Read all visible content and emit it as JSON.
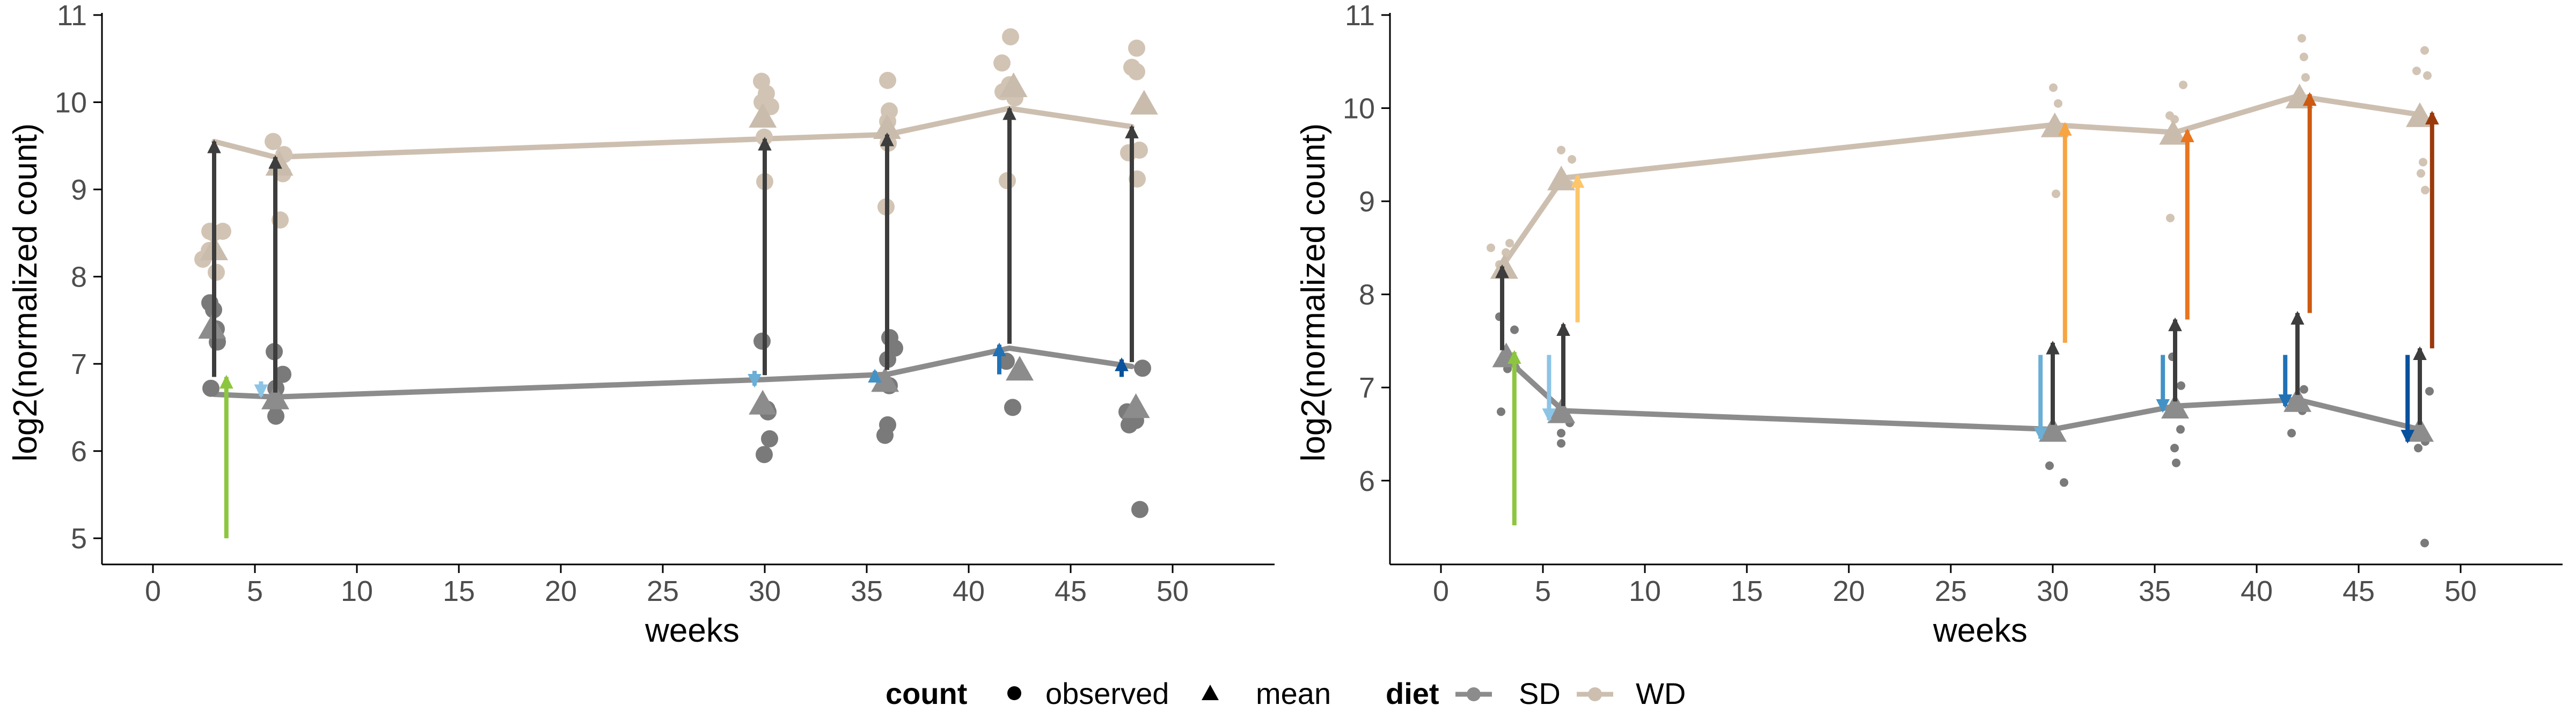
{
  "legend": {
    "count_title": "count",
    "count_items": [
      {
        "label": "observed",
        "shape": "circle"
      },
      {
        "label": "mean",
        "shape": "triangle"
      }
    ],
    "diet_title": "diet",
    "diet_items": [
      {
        "label": "SD",
        "color": "#8c8c8c"
      },
      {
        "label": "WD",
        "color": "#cdbfb0"
      }
    ]
  },
  "colors": {
    "SD": "#8c8c8c",
    "WD": "#cdbfb0",
    "observed_SD": "#7a7a7a",
    "observed_WD": "#d2c4b4",
    "mean_SD": "#8c8c8c",
    "mean_WD": "#c9bcac",
    "dark_arrow": "#3d3d3d",
    "axis": "#000000"
  },
  "chart_data": [
    {
      "type": "scatter",
      "panel": "left",
      "xlabel": "weeks",
      "ylabel": "log2(normalized count)",
      "xlim": [
        -2.5,
        55
      ],
      "ylim": [
        4.7,
        11
      ],
      "xticks": [
        0,
        5,
        10,
        15,
        20,
        25,
        30,
        35,
        40,
        45,
        50
      ],
      "yticks": [
        5,
        6,
        7,
        8,
        9,
        10,
        11
      ],
      "grid": false,
      "series": [
        {
          "name": "SD",
          "line": [
            [
              3,
              6.65
            ],
            [
              6,
              6.62
            ],
            [
              30,
              6.82
            ],
            [
              36,
              6.88
            ],
            [
              42,
              7.18
            ],
            [
              48,
              6.97
            ]
          ]
        },
        {
          "name": "WD",
          "line": [
            [
              3,
              9.55
            ],
            [
              6,
              9.37
            ],
            [
              30,
              9.58
            ],
            [
              36,
              9.63
            ],
            [
              42,
              9.93
            ],
            [
              48,
              9.72
            ]
          ]
        }
      ],
      "observed": {
        "SD": [
          [
            3.0,
            6.72
          ],
          [
            3.2,
            7.25
          ],
          [
            3.0,
            7.4
          ],
          [
            3.1,
            7.62
          ],
          [
            2.8,
            7.7
          ],
          [
            5.9,
            6.4
          ],
          [
            6.1,
            6.55
          ],
          [
            6.0,
            6.72
          ],
          [
            6.2,
            6.88
          ],
          [
            6.0,
            7.14
          ],
          [
            29.9,
            5.96
          ],
          [
            30.4,
            6.14
          ],
          [
            30.2,
            6.45
          ],
          [
            30.0,
            6.48
          ],
          [
            30.0,
            7.26
          ],
          [
            35.9,
            6.18
          ],
          [
            35.9,
            6.3
          ],
          [
            36.2,
            6.75
          ],
          [
            36.0,
            7.05
          ],
          [
            36.2,
            7.18
          ],
          [
            36.2,
            7.3
          ],
          [
            42.1,
            6.5
          ],
          [
            42.0,
            7.03
          ],
          [
            47.9,
            6.3
          ],
          [
            48.1,
            6.35
          ],
          [
            47.9,
            6.45
          ],
          [
            48.4,
            5.33
          ],
          [
            48.4,
            6.95
          ]
        ],
        "WD": [
          [
            2.6,
            8.2
          ],
          [
            2.8,
            8.3
          ],
          [
            3.0,
            8.05
          ],
          [
            3.1,
            8.5
          ],
          [
            2.8,
            8.52
          ],
          [
            3.3,
            8.52
          ],
          [
            6.0,
            9.55
          ],
          [
            6.4,
            9.4
          ],
          [
            6.2,
            9.18
          ],
          [
            6.3,
            8.65
          ],
          [
            29.8,
            10.0
          ],
          [
            30.0,
            10.24
          ],
          [
            30.1,
            10.1
          ],
          [
            30.2,
            9.95
          ],
          [
            30.1,
            9.6
          ],
          [
            30.0,
            9.09
          ],
          [
            35.9,
            10.25
          ],
          [
            36.2,
            9.9
          ],
          [
            36.0,
            9.78
          ],
          [
            35.9,
            9.53
          ],
          [
            36.0,
            8.8
          ],
          [
            42.0,
            10.75
          ],
          [
            41.8,
            10.45
          ],
          [
            42.3,
            10.05
          ],
          [
            41.9,
            10.2
          ],
          [
            41.8,
            10.12
          ],
          [
            41.9,
            9.1
          ],
          [
            48.1,
            10.62
          ],
          [
            48.1,
            10.4
          ],
          [
            48.2,
            10.35
          ],
          [
            48.2,
            9.45
          ],
          [
            47.9,
            9.42
          ],
          [
            48.2,
            9.12
          ]
        ]
      },
      "means": {
        "SD": [
          [
            2.9,
            7.43
          ],
          [
            6.0,
            6.62
          ],
          [
            29.9,
            6.56
          ],
          [
            35.9,
            6.82
          ],
          [
            42.5,
            6.95
          ],
          [
            48.2,
            6.52
          ]
        ],
        "WD": [
          [
            3.0,
            8.33
          ],
          [
            6.2,
            9.3
          ],
          [
            29.9,
            9.85
          ],
          [
            36.0,
            9.72
          ],
          [
            42.2,
            10.2
          ],
          [
            48.6,
            10.0
          ]
        ]
      },
      "arrows": [
        {
          "x": 3.0,
          "from": 6.85,
          "to": 9.55,
          "color": "#3d3d3d"
        },
        {
          "x": 6.0,
          "from": 6.67,
          "to": 9.37,
          "color": "#3d3d3d"
        },
        {
          "x": 30.0,
          "from": 6.87,
          "to": 9.58,
          "color": "#3d3d3d"
        },
        {
          "x": 36.0,
          "from": 6.93,
          "to": 9.63,
          "color": "#3d3d3d"
        },
        {
          "x": 42.0,
          "from": 7.23,
          "to": 9.93,
          "color": "#3d3d3d"
        },
        {
          "x": 48.0,
          "from": 7.02,
          "to": 9.72,
          "color": "#3d3d3d"
        },
        {
          "x": 3.6,
          "from": 5.0,
          "to": 6.85,
          "color": "#8cc63f"
        },
        {
          "x": 5.3,
          "from": 6.8,
          "to": 6.63,
          "color": "#8cc4e6"
        },
        {
          "x": 29.5,
          "from": 6.92,
          "to": 6.75,
          "color": "#6baed6"
        },
        {
          "x": 35.4,
          "from": 6.82,
          "to": 6.92,
          "color": "#4292c6"
        },
        {
          "x": 41.5,
          "from": 6.88,
          "to": 7.22,
          "color": "#2171b5"
        },
        {
          "x": 47.5,
          "from": 6.85,
          "to": 7.05,
          "color": "#08519c"
        }
      ]
    },
    {
      "type": "scatter",
      "panel": "right",
      "xlabel": "weeks",
      "ylabel": "log2(normalized count)",
      "xlim": [
        -2.5,
        55
      ],
      "ylim": [
        5.1,
        11
      ],
      "xticks": [
        0,
        5,
        10,
        15,
        20,
        25,
        30,
        35,
        40,
        45,
        50
      ],
      "yticks": [
        6,
        7,
        8,
        9,
        10,
        11
      ],
      "grid": false,
      "series": [
        {
          "name": "SD",
          "line": [
            [
              3,
              7.35
            ],
            [
              6,
              6.75
            ],
            [
              30,
              6.55
            ],
            [
              36,
              6.8
            ],
            [
              42,
              6.87
            ],
            [
              48,
              6.55
            ]
          ]
        },
        {
          "name": "WD",
          "line": [
            [
              3,
              8.3
            ],
            [
              6,
              9.25
            ],
            [
              30,
              9.82
            ],
            [
              36,
              9.74
            ],
            [
              42,
              10.13
            ],
            [
              48,
              9.93
            ]
          ]
        }
      ],
      "observed": {
        "SD": [
          [
            3.1,
            6.74
          ],
          [
            3.3,
            7.2
          ],
          [
            3.5,
            7.62
          ],
          [
            3.0,
            7.76
          ],
          [
            5.9,
            6.51
          ],
          [
            6.2,
            6.62
          ],
          [
            6.0,
            6.4
          ],
          [
            29.8,
            6.16
          ],
          [
            30.4,
            5.98
          ],
          [
            30.0,
            6.47
          ],
          [
            35.9,
            6.35
          ],
          [
            36.2,
            6.19
          ],
          [
            36.3,
            6.55
          ],
          [
            36.2,
            7.02
          ],
          [
            36.0,
            7.33
          ],
          [
            41.7,
            6.51
          ],
          [
            42.1,
            6.75
          ],
          [
            42.4,
            6.98
          ],
          [
            47.9,
            6.35
          ],
          [
            48.1,
            6.42
          ],
          [
            48.3,
            5.33
          ],
          [
            48.4,
            6.96
          ]
        ],
        "WD": [
          [
            2.6,
            8.5
          ],
          [
            2.9,
            8.32
          ],
          [
            3.1,
            8.45
          ],
          [
            3.5,
            8.55
          ],
          [
            5.9,
            9.55
          ],
          [
            6.3,
            9.45
          ],
          [
            6.4,
            9.18
          ],
          [
            30.0,
            10.22
          ],
          [
            30.1,
            10.05
          ],
          [
            30.3,
            9.75
          ],
          [
            30.1,
            9.08
          ],
          [
            35.9,
            9.92
          ],
          [
            36.0,
            9.88
          ],
          [
            36.3,
            10.25
          ],
          [
            35.9,
            8.82
          ],
          [
            42.2,
            10.75
          ],
          [
            42.2,
            10.55
          ],
          [
            42.5,
            10.33
          ],
          [
            47.8,
            10.4
          ],
          [
            48.0,
            9.42
          ],
          [
            48.3,
            10.62
          ],
          [
            48.3,
            10.35
          ],
          [
            48.2,
            9.3
          ],
          [
            48.3,
            9.12
          ]
        ]
      },
      "means": {
        "SD": [
          [
            3.2,
            7.35
          ],
          [
            5.9,
            6.75
          ],
          [
            30.0,
            6.55
          ],
          [
            36.0,
            6.8
          ],
          [
            42.0,
            6.87
          ],
          [
            48.0,
            6.55
          ]
        ],
        "WD": [
          [
            3.1,
            8.3
          ],
          [
            5.9,
            9.25
          ],
          [
            30.1,
            9.82
          ],
          [
            35.9,
            9.74
          ],
          [
            42.1,
            10.13
          ],
          [
            48.0,
            9.93
          ]
        ]
      },
      "arrows": [
        {
          "x": 3.0,
          "from": 7.4,
          "to": 8.3,
          "color": "#3d3d3d"
        },
        {
          "x": 6.0,
          "from": 6.8,
          "to": 7.68,
          "color": "#3d3d3d"
        },
        {
          "x": 30.0,
          "from": 6.6,
          "to": 7.48,
          "color": "#3d3d3d"
        },
        {
          "x": 36.0,
          "from": 6.85,
          "to": 7.73,
          "color": "#3d3d3d"
        },
        {
          "x": 42.0,
          "from": 6.92,
          "to": 7.8,
          "color": "#3d3d3d"
        },
        {
          "x": 48.0,
          "from": 6.6,
          "to": 7.42,
          "color": "#3d3d3d"
        },
        {
          "x": 3.6,
          "from": 5.52,
          "to": 7.38,
          "color": "#8cc63f"
        },
        {
          "x": 6.7,
          "from": 7.7,
          "to": 9.27,
          "color": "#fdc66b"
        },
        {
          "x": 30.6,
          "from": 7.48,
          "to": 9.83,
          "color": "#f7a541"
        },
        {
          "x": 36.6,
          "from": 7.73,
          "to": 9.76,
          "color": "#e9751e"
        },
        {
          "x": 42.6,
          "from": 7.8,
          "to": 10.15,
          "color": "#cc5a11"
        },
        {
          "x": 48.6,
          "from": 7.42,
          "to": 9.95,
          "color": "#9a3a0c"
        },
        {
          "x": 5.3,
          "from": 7.35,
          "to": 6.65,
          "color": "#8cc4e6"
        },
        {
          "x": 29.4,
          "from": 7.35,
          "to": 6.45,
          "color": "#6baed6"
        },
        {
          "x": 35.4,
          "from": 7.35,
          "to": 6.75,
          "color": "#4292c6"
        },
        {
          "x": 41.4,
          "from": 7.35,
          "to": 6.8,
          "color": "#2171b5"
        },
        {
          "x": 47.4,
          "from": 7.35,
          "to": 6.42,
          "color": "#08519c"
        }
      ]
    }
  ]
}
